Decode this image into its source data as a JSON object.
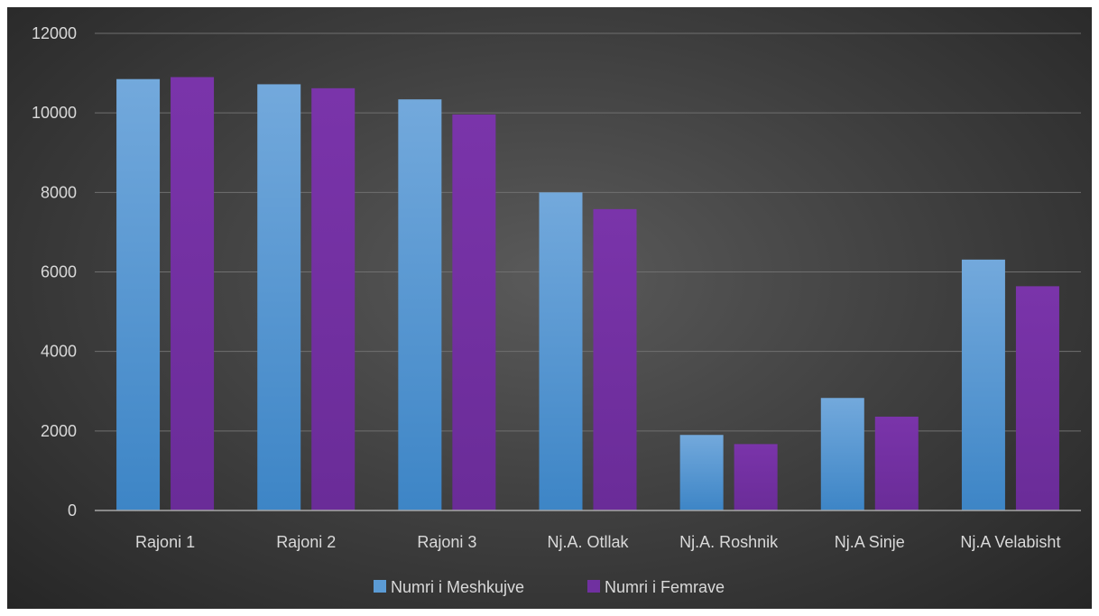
{
  "chart_data": {
    "type": "bar",
    "categories": [
      "Rajoni 1",
      "Rajoni 2",
      "Rajoni 3",
      "Nj.A. Otllak",
      "Nj.A. Roshnik",
      "Nj.A Sinje",
      "Nj.A Velabisht"
    ],
    "series": [
      {
        "name": "Numri i Meshkujve",
        "values": [
          10850,
          10720,
          10340,
          8000,
          1900,
          2830,
          6310
        ],
        "color": "#5b9bd5"
      },
      {
        "name": "Numri i Femrave",
        "values": [
          10900,
          10620,
          9960,
          7580,
          1670,
          2360,
          5640
        ],
        "color": "#7030a0"
      }
    ],
    "ylim": [
      0,
      12000
    ],
    "yticks": [
      "0",
      "2000",
      "4000",
      "6000",
      "8000",
      "10000",
      "12000"
    ],
    "grid": true,
    "legend": "bottom",
    "title": "",
    "xlabel": "",
    "ylabel": ""
  }
}
